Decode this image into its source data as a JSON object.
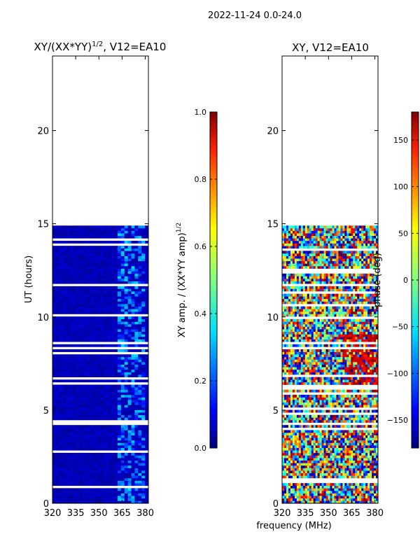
{
  "suptitle": "2022-11-24 0.0-24.0",
  "chart_data": [
    {
      "type": "heatmap",
      "title_prefix": "XY/(XX*YY)",
      "title_exponent": "1/2",
      "title_suffix": ", V12=EA10",
      "xlabel": "",
      "ylabel": "UT (hours)",
      "xlim": [
        320,
        382
      ],
      "ylim": [
        0,
        24
      ],
      "xticks": [
        "320",
        "335",
        "350",
        "365",
        "380"
      ],
      "xtick_values": [
        320,
        335,
        350,
        365,
        380
      ],
      "yticks": [
        "0",
        "5",
        "10",
        "15",
        "20"
      ],
      "ytick_values": [
        0,
        5,
        10,
        15,
        20
      ],
      "data_extent_hours": [
        0,
        14.9
      ],
      "value_description": "normalized XY amplitude, mostly ~0.0-0.15 with brighter channels near 362-378 MHz",
      "colorbar": {
        "label_prefix": "XY amp. / (XX*YY amp)",
        "label_exponent": "1/2",
        "range": [
          0.0,
          1.0
        ],
        "ticks": [
          "0.0",
          "0.2",
          "0.4",
          "0.6",
          "0.8",
          "1.0"
        ],
        "tick_values": [
          0.0,
          0.2,
          0.4,
          0.6,
          0.8,
          1.0
        ]
      }
    },
    {
      "type": "heatmap",
      "title": "XY, V12=EA10",
      "xlabel": "frequency (MHz)",
      "ylabel": "",
      "xlim": [
        320,
        382
      ],
      "ylim": [
        0,
        24
      ],
      "xticks": [
        "320",
        "335",
        "350",
        "365",
        "380"
      ],
      "xtick_values": [
        320,
        335,
        350,
        365,
        380
      ],
      "yticks": [
        "0",
        "5",
        "10",
        "15",
        "20"
      ],
      "ytick_values": [
        0,
        5,
        10,
        15,
        20
      ],
      "data_extent_hours": [
        0,
        14.9
      ],
      "value_description": "XY phase in degrees, noisy across full range",
      "colorbar": {
        "label": "phase (deg)",
        "range": [
          -180,
          180
        ],
        "ticks": [
          "−150",
          "−100",
          "−50",
          "0",
          "50",
          "100",
          "150"
        ],
        "tick_values": [
          -150,
          -100,
          -50,
          0,
          50,
          100,
          150
        ]
      }
    }
  ],
  "colors": {
    "jet": [
      "#00007f",
      "#0000ff",
      "#007fff",
      "#00ffff",
      "#7fff7f",
      "#ffff00",
      "#ff7f00",
      "#ff0000",
      "#7f0000"
    ]
  }
}
